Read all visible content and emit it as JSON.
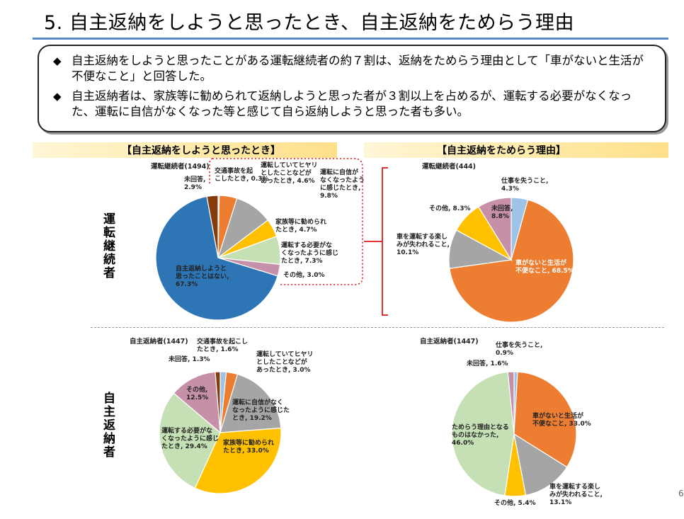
{
  "page": {
    "title": "5. 自主返納をしようと思ったとき、自主返納をためらう理由",
    "summary": [
      "自主返納をしようと思ったことがある運転継続者の約７割は、返納をためらう理由として「車がないと生活が不便なこと」と回答した。",
      "自主返納者は、家族等に勧められて返納しようと思った者が３割以上を占めるが、運転する必要がなくなった、運転に自信がなくなった等と感じて自ら返納しようと思った者も多い。"
    ],
    "bullet_mark": "◆",
    "section_left": "【自主返納をしようと思ったとき】",
    "section_right": "【自主返納をためらう理由】",
    "row_top": "運転継続者",
    "row_bottom": "自主返納者",
    "page_number": "6"
  },
  "colors": {
    "blue": "#2e75b6",
    "orange": "#ed7d31",
    "gray": "#a5a5a5",
    "yellow": "#ffc000",
    "lightblue": "#9dc3e6",
    "lightgreen": "#c5e0b4",
    "green": "#a9d18e",
    "pink": "#c790a9",
    "brown": "#843c0c",
    "orange2": "#f4b183"
  },
  "chart_data": [
    {
      "type": "pie",
      "title": "運転継続者(1494)",
      "slices": [
        {
          "label": "交通事故を起こしたとき",
          "value": 0.3,
          "display": "交通事故を起\nこしたとき, 0.3%",
          "color": "#9dc3e6"
        },
        {
          "label": "運転していてヒヤリとしたことなどがあったとき",
          "value": 4.6,
          "display": "運転していてヒヤリ\nとしたことなどが\nあったとき, 4.6%",
          "color": "#ed7d31"
        },
        {
          "label": "運転に自信がなくなったように感じたとき",
          "value": 9.8,
          "display": "運転に自信が\nなくなったよう\nに感じたとき,\n9.8%",
          "color": "#a5a5a5"
        },
        {
          "label": "家族等に勧められたとき",
          "value": 4.7,
          "display": "家族等に勧められ\nたとき, 4.7%",
          "color": "#ffc000"
        },
        {
          "label": "運転する必要がなくなったように感じたとき",
          "value": 7.3,
          "display": "運転する必要がな\nくなったように感じ\nたとき, 7.3%",
          "color": "#c5e0b4"
        },
        {
          "label": "その他",
          "value": 3.0,
          "display": "その他, 3.0%",
          "color": "#c790a9"
        },
        {
          "label": "自主返納しようと思ったことはない",
          "value": 67.3,
          "display": "自主返納しようと\n思ったことはない,\n67.3%",
          "color": "#2e75b6"
        },
        {
          "label": "未回答",
          "value": 2.9,
          "display": "未回答,\n2.9%",
          "color": "#843c0c"
        }
      ]
    },
    {
      "type": "pie",
      "title": "運転継続者(444)",
      "slices": [
        {
          "label": "仕事を失うこと",
          "value": 4.3,
          "display": "仕事を失うこと,\n4.3%",
          "color": "#9dc3e6"
        },
        {
          "label": "車がないと生活が不便なこと",
          "value": 68.5,
          "display": "車がないと生活が\n不便なこと, 68.5%",
          "color": "#ed7d31"
        },
        {
          "label": "車を運転する楽しみが失われること",
          "value": 10.1,
          "display": "車を運転する楽し\nみが失われること,\n10.1%",
          "color": "#a5a5a5"
        },
        {
          "label": "その他",
          "value": 8.3,
          "display": "その他, 8.3%",
          "color": "#ffc000"
        },
        {
          "label": "未回答",
          "value": 8.8,
          "display": "未回答,\n8.8%",
          "color": "#c790a9"
        }
      ]
    },
    {
      "type": "pie",
      "title": "自主返納者(1447)",
      "slices": [
        {
          "label": "交通事故を起こしたとき",
          "value": 1.6,
          "display": "交通事故を起こし\nたとき, 1.6%",
          "color": "#9dc3e6"
        },
        {
          "label": "運転していてヒヤリとしたことなどがあったとき",
          "value": 3.0,
          "display": "運転していてヒヤリ\nとしたことなどが\nあったとき, 3.0%",
          "color": "#ed7d31"
        },
        {
          "label": "運転に自信がなくなったように感じたとき",
          "value": 19.2,
          "display": "運転に自信がなく\nなったように感じた\nとき, 19.2%",
          "color": "#a5a5a5"
        },
        {
          "label": "家族等に勧められたとき",
          "value": 33.0,
          "display": "家族等に勧められ\nたとき, 33.0%",
          "color": "#ffc000"
        },
        {
          "label": "運転する必要がなくなったように感じたとき",
          "value": 29.4,
          "display": "運転する必要がな\nくなったように感じ\nたとき, 29.4%",
          "color": "#c5e0b4"
        },
        {
          "label": "その他",
          "value": 12.5,
          "display": "その他,\n12.5%",
          "color": "#c790a9"
        },
        {
          "label": "未回答",
          "value": 1.3,
          "display": "未回答, 1.3%",
          "color": "#843c0c"
        }
      ]
    },
    {
      "type": "pie",
      "title": "自主返納者(1447)",
      "slices": [
        {
          "label": "仕事を失うこと",
          "value": 0.9,
          "display": "仕事を失うこと,\n0.9%",
          "color": "#9dc3e6"
        },
        {
          "label": "車がないと生活が不便なこと",
          "value": 33.0,
          "display": "車がないと生活が\n不便なこと, 33.0%",
          "color": "#ed7d31"
        },
        {
          "label": "車を運転する楽しみが失われること",
          "value": 13.1,
          "display": "車を運転する楽し\nみが失われること,\n13.1%",
          "color": "#a5a5a5"
        },
        {
          "label": "その他",
          "value": 5.4,
          "display": "その他, 5.4%",
          "color": "#ffc000"
        },
        {
          "label": "ためらう理由となるものはなかった",
          "value": 46.0,
          "display": "ためらう理由となる\nものはなかった,\n46.0%",
          "color": "#c5e0b4"
        },
        {
          "label": "未回答",
          "value": 1.6,
          "display": "未回答, 1.6%",
          "color": "#c790a9"
        }
      ]
    }
  ]
}
